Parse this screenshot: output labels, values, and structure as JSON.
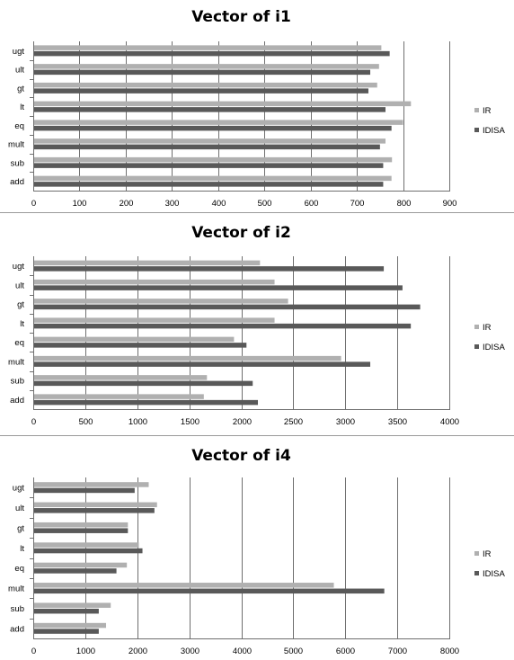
{
  "colors": {
    "IR": "#b0b0b0",
    "IDISA": "#595959",
    "grid": "#6f6f6f"
  },
  "chart_data": [
    {
      "type": "bar",
      "orientation": "horizontal",
      "title": "Vector of i1",
      "categories": [
        "ugt",
        "ult",
        "gt",
        "lt",
        "eq",
        "mult",
        "sub",
        "add"
      ],
      "series": [
        {
          "name": "IR",
          "values": [
            753,
            748,
            744,
            817,
            800,
            762,
            776,
            775
          ]
        },
        {
          "name": "IDISA",
          "values": [
            771,
            729,
            725,
            762,
            775,
            750,
            757,
            757
          ]
        }
      ],
      "xlim": [
        0,
        900
      ],
      "xticks": [
        "0",
        "100",
        "200",
        "300",
        "400",
        "500",
        "600",
        "700",
        "800",
        "900"
      ],
      "legend": [
        "IR",
        "IDISA"
      ],
      "grid": true
    },
    {
      "type": "bar",
      "orientation": "horizontal",
      "title": "Vector of i2",
      "categories": [
        "ugt",
        "ult",
        "gt",
        "lt",
        "eq",
        "mult",
        "sub",
        "add"
      ],
      "series": [
        {
          "name": "IR",
          "values": [
            2180,
            2320,
            2450,
            2320,
            1930,
            2960,
            1670,
            1640
          ]
        },
        {
          "name": "IDISA",
          "values": [
            3370,
            3550,
            3720,
            3630,
            2050,
            3240,
            2110,
            2160
          ]
        }
      ],
      "xlim": [
        0,
        4000
      ],
      "xticks": [
        "0",
        "500",
        "1000",
        "1500",
        "2000",
        "2500",
        "3000",
        "3500",
        "4000"
      ],
      "legend": [
        "IR",
        "IDISA"
      ],
      "grid": true
    },
    {
      "type": "bar",
      "orientation": "horizontal",
      "title": "Vector of i4",
      "categories": [
        "ugt",
        "ult",
        "gt",
        "lt",
        "eq",
        "mult",
        "sub",
        "add"
      ],
      "series": [
        {
          "name": "IR",
          "values": [
            2220,
            2380,
            1820,
            2030,
            1800,
            5780,
            1490,
            1400
          ]
        },
        {
          "name": "IDISA",
          "values": [
            1950,
            2330,
            1820,
            2100,
            1600,
            6750,
            1260,
            1260
          ]
        }
      ],
      "xlim": [
        0,
        8000
      ],
      "xticks": [
        "0",
        "1000",
        "2000",
        "3000",
        "4000",
        "5000",
        "6000",
        "7000",
        "8000"
      ],
      "legend": [
        "IR",
        "IDISA"
      ],
      "grid": true
    }
  ]
}
